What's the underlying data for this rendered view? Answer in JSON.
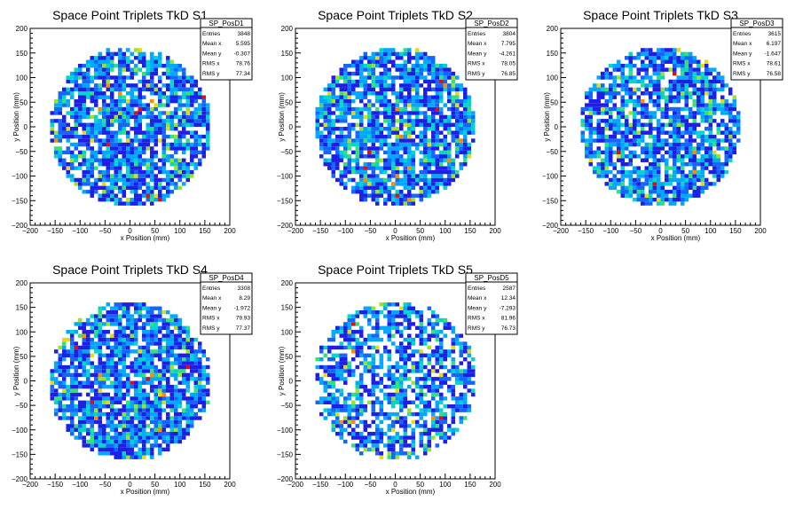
{
  "colors": {
    "frame": "#000000",
    "palette": [
      "#1e1ee6",
      "#1466ff",
      "#00a8ff",
      "#00d7c8",
      "#33e07a",
      "#9be22a",
      "#e6d91a",
      "#ff8c00",
      "#e01010"
    ]
  },
  "chart_data": [
    {
      "type": "heatmap",
      "title": "Space Point Triplets TkD S1",
      "xlabel": "x Position (mm)",
      "ylabel": "y Position (mm)",
      "xlim": [
        -200,
        200
      ],
      "ylim": [
        -200,
        200
      ],
      "xticks": [
        "−200",
        "−150",
        "−100",
        "−50",
        "0",
        "50",
        "100",
        "150",
        "200"
      ],
      "yticks": [
        "−200",
        "−150",
        "−100",
        "−50",
        "0",
        "50",
        "100",
        "150",
        "200"
      ],
      "disk_radius": 160,
      "bin_width": 8,
      "fill_fraction": 0.8,
      "stats": {
        "name": "SP_PosD1",
        "rows": [
          [
            "Entries",
            "3848"
          ],
          [
            "Mean x",
            "5.595"
          ],
          [
            "Mean y",
            "-0.307"
          ],
          [
            "RMS x",
            "78.76"
          ],
          [
            "RMS y",
            "77.34"
          ]
        ]
      }
    },
    {
      "type": "heatmap",
      "title": "Space Point Triplets TkD S2",
      "xlabel": "x Position (mm)",
      "ylabel": "y Position (mm)",
      "xlim": [
        -200,
        200
      ],
      "ylim": [
        -200,
        200
      ],
      "xticks": [
        "−200",
        "−150",
        "−100",
        "−50",
        "0",
        "50",
        "100",
        "150",
        "200"
      ],
      "yticks": [
        "−200",
        "−150",
        "−100",
        "−50",
        "0",
        "50",
        "100",
        "150",
        "200"
      ],
      "disk_radius": 160,
      "bin_width": 8,
      "fill_fraction": 0.82,
      "stats": {
        "name": "SP_PosD2",
        "rows": [
          [
            "Entries",
            "3804"
          ],
          [
            "Mean x",
            "7.795"
          ],
          [
            "Mean y",
            "-4.261"
          ],
          [
            "RMS x",
            "78.05"
          ],
          [
            "RMS y",
            "76.85"
          ]
        ]
      }
    },
    {
      "type": "heatmap",
      "title": "Space Point Triplets TkD S3",
      "xlabel": "x Position (mm)",
      "ylabel": "y Position (mm)",
      "xlim": [
        -200,
        200
      ],
      "ylim": [
        -200,
        200
      ],
      "xticks": [
        "−200",
        "−150",
        "−100",
        "−50",
        "0",
        "50",
        "100",
        "150",
        "200"
      ],
      "yticks": [
        "−200",
        "−150",
        "−100",
        "−50",
        "0",
        "50",
        "100",
        "150",
        "200"
      ],
      "disk_radius": 160,
      "bin_width": 8,
      "fill_fraction": 0.78,
      "stats": {
        "name": "SP_PosD3",
        "rows": [
          [
            "Entries",
            "3615"
          ],
          [
            "Mean x",
            "6.197"
          ],
          [
            "Mean y",
            "-1.647"
          ],
          [
            "RMS x",
            "78.61"
          ],
          [
            "RMS y",
            "76.58"
          ]
        ]
      }
    },
    {
      "type": "heatmap",
      "title": "Space Point Triplets TkD S4",
      "xlabel": "x Position (mm)",
      "ylabel": "y Position (mm)",
      "xlim": [
        -200,
        200
      ],
      "ylim": [
        -200,
        200
      ],
      "xticks": [
        "−200",
        "−150",
        "−100",
        "−50",
        "0",
        "50",
        "100",
        "150",
        "200"
      ],
      "yticks": [
        "−200",
        "−150",
        "−100",
        "−50",
        "0",
        "50",
        "100",
        "150",
        "200"
      ],
      "disk_radius": 160,
      "bin_width": 8,
      "fill_fraction": 0.8,
      "stats": {
        "name": "SP_PosD4",
        "rows": [
          [
            "Entries",
            "3308"
          ],
          [
            "Mean x",
            "8.29"
          ],
          [
            "Mean y",
            "-1.972"
          ],
          [
            "RMS x",
            "79.93"
          ],
          [
            "RMS y",
            "77.37"
          ]
        ]
      }
    },
    {
      "type": "heatmap",
      "title": "Space Point Triplets TkD S5",
      "xlabel": "x Position (mm)",
      "ylabel": "y Position (mm)",
      "xlim": [
        -200,
        200
      ],
      "ylim": [
        -200,
        200
      ],
      "xticks": [
        "−200",
        "−150",
        "−100",
        "−50",
        "0",
        "50",
        "100",
        "150",
        "200"
      ],
      "yticks": [
        "−200",
        "−150",
        "−100",
        "−50",
        "0",
        "50",
        "100",
        "150",
        "200"
      ],
      "disk_radius": 160,
      "bin_width": 8,
      "fill_fraction": 0.62,
      "stats": {
        "name": "SP_PosD5",
        "rows": [
          [
            "Entries",
            "2587"
          ],
          [
            "Mean x",
            "12.34"
          ],
          [
            "Mean y",
            "-7.293"
          ],
          [
            "RMS x",
            "81.96"
          ],
          [
            "RMS y",
            "76.73"
          ]
        ]
      }
    }
  ]
}
